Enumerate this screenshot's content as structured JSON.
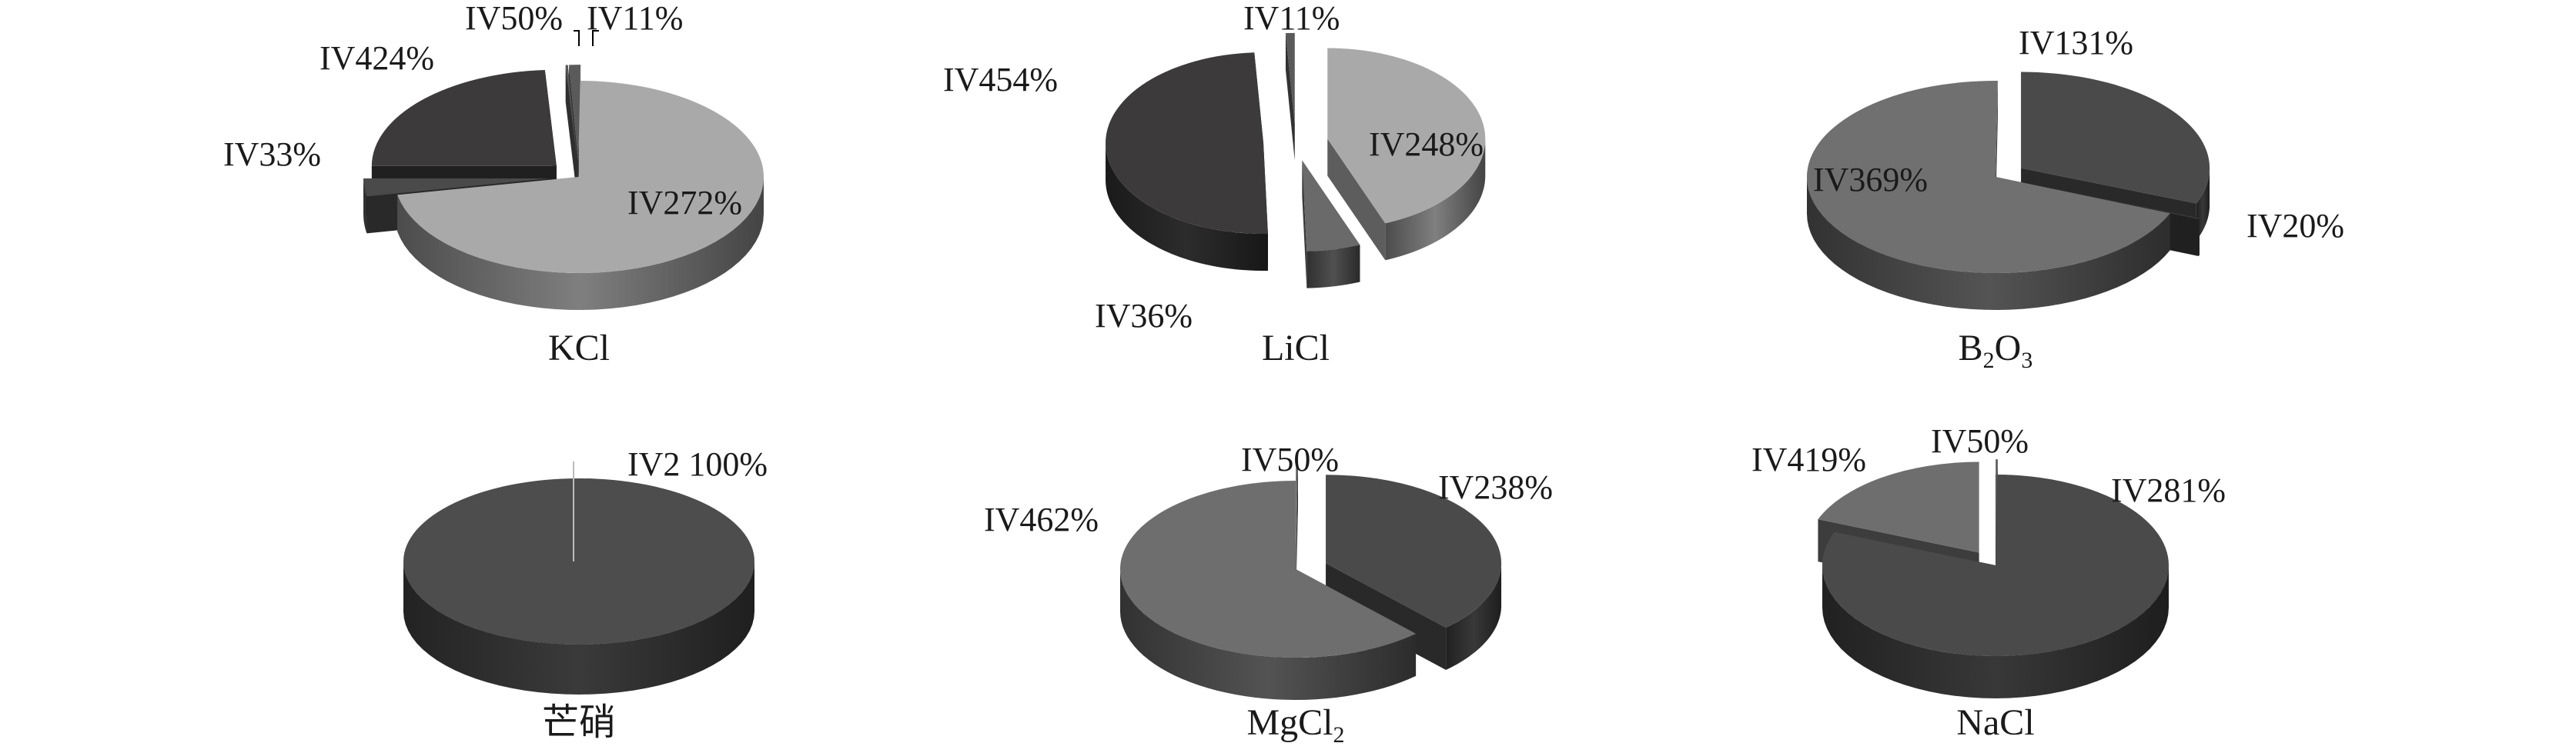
{
  "chart_data": [
    {
      "type": "pie",
      "title": "KCl",
      "slices": [
        {
          "label": "IV2",
          "value": 72,
          "display": "IV272%",
          "color": "#a9a9a9",
          "explode": false
        },
        {
          "label": "IV3",
          "value": 3,
          "display": "IV33%",
          "color": "#4a4a4a",
          "explode": true
        },
        {
          "label": "IV4",
          "value": 24,
          "display": "IV424%",
          "color": "#3c3a3a",
          "explode": true
        },
        {
          "label": "IV5",
          "value": 0,
          "display": "IV50%",
          "color": "#555555",
          "explode": true
        },
        {
          "label": "IV1",
          "value": 1,
          "display": "IV11%",
          "color": "#5a5a5a",
          "explode": true
        }
      ]
    },
    {
      "type": "pie",
      "title": "LiCl",
      "slices": [
        {
          "label": "IV2",
          "value": 48,
          "display": "IV248%",
          "color": "#a9a9a9",
          "explode": true
        },
        {
          "label": "IV3",
          "value": 6,
          "display": "IV36%",
          "color": "#6a6a6a",
          "explode": true
        },
        {
          "label": "IV4",
          "value": 54,
          "display": "IV454%",
          "color": "#3c3a3a",
          "explode": true
        },
        {
          "label": "IV1",
          "value": 1,
          "display": "IV11%",
          "color": "#5a5a5a",
          "explode": true
        }
      ]
    },
    {
      "type": "pie",
      "title": "B2O3",
      "title_main": "B",
      "title_sub1": "2",
      "title_mid": "O",
      "title_sub2": "3",
      "slices": [
        {
          "label": "IV1",
          "value": 31,
          "display": "IV131%",
          "color": "#4a4a4a",
          "explode": true
        },
        {
          "label": "IV2",
          "value": 0,
          "display": "IV20%",
          "color": "#3a3a3a",
          "explode": true
        },
        {
          "label": "IV3",
          "value": 69,
          "display": "IV369%",
          "color": "#707070",
          "explode": false
        }
      ]
    },
    {
      "type": "pie",
      "title": "芒硝",
      "slices": [
        {
          "label": "IV2",
          "value": 100,
          "display": "IV2 100%",
          "color": "#4d4d4d",
          "explode": false
        }
      ]
    },
    {
      "type": "pie",
      "title": "MgCl2",
      "title_main": "MgCl",
      "title_sub1": "2",
      "slices": [
        {
          "label": "IV2",
          "value": 38,
          "display": "IV238%",
          "color": "#4a4a4a",
          "explode": true
        },
        {
          "label": "IV4",
          "value": 62,
          "display": "IV462%",
          "color": "#6e6e6e",
          "explode": false
        },
        {
          "label": "IV5",
          "value": 0,
          "display": "IV50%",
          "color": "#5a5a5a",
          "explode": true
        }
      ]
    },
    {
      "type": "pie",
      "title": "NaCl",
      "slices": [
        {
          "label": "IV2",
          "value": 81,
          "display": "IV281%",
          "color": "#4a4a4a",
          "explode": false
        },
        {
          "label": "IV4",
          "value": 19,
          "display": "IV419%",
          "color": "#6e6e6e",
          "explode": true
        },
        {
          "label": "IV5",
          "value": 0,
          "display": "IV50%",
          "color": "#5a5a5a",
          "explode": true
        }
      ]
    }
  ]
}
